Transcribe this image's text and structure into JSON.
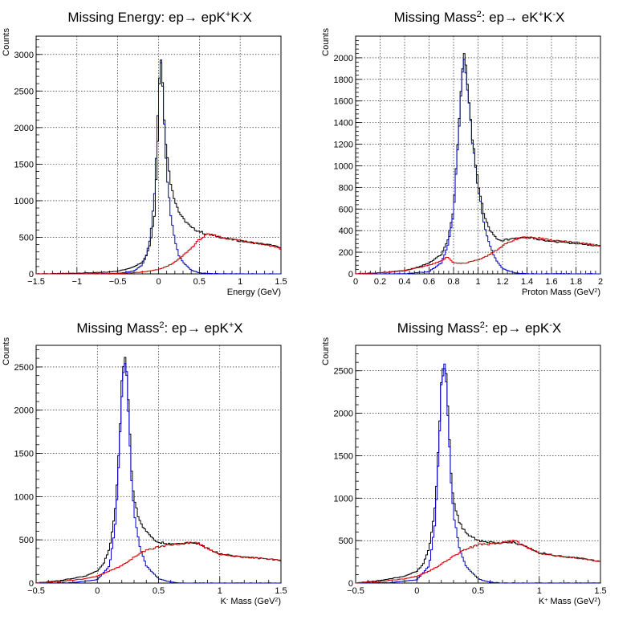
{
  "chart_data": [
    {
      "type": "histogram",
      "title_main": "Missing Energy: ep→ epK",
      "title_sup1": "+",
      "title_mid": "K",
      "title_sup2": "-",
      "title_end": "X",
      "xlabel": "Energy (GeV)",
      "ylabel": "Counts",
      "xlim": [
        -1.5,
        1.5
      ],
      "ylim": [
        0,
        3250
      ],
      "xticks": [
        -1.5,
        -1,
        -0.5,
        0,
        0.5,
        1,
        1.5
      ],
      "xtick_labels": [
        "−1.5",
        "−1",
        "−0.5",
        "0",
        "0.5",
        "1",
        "1.5"
      ],
      "yticks": [
        0,
        500,
        1000,
        1500,
        2000,
        2500,
        3000
      ],
      "ytick_labels": [
        "0",
        "500",
        "1000",
        "1500",
        "2000",
        "2500",
        "3000"
      ],
      "grid": true,
      "series": [
        {
          "color": "#000000",
          "x": [
            -1.5,
            -1.2,
            -1.0,
            -0.8,
            -0.6,
            -0.5,
            -0.4,
            -0.3,
            -0.2,
            -0.15,
            -0.1,
            -0.05,
            0.0,
            0.02,
            0.04,
            0.06,
            0.1,
            0.15,
            0.2,
            0.25,
            0.3,
            0.35,
            0.4,
            0.5,
            0.6,
            0.7,
            0.8,
            1.0,
            1.2,
            1.4,
            1.5
          ],
          "y": [
            0,
            5,
            10,
            15,
            25,
            40,
            60,
            100,
            160,
            250,
            420,
            800,
            2100,
            3070,
            2880,
            2300,
            1650,
            1250,
            1000,
            850,
            750,
            700,
            630,
            580,
            540,
            520,
            490,
            450,
            420,
            390,
            350
          ]
        },
        {
          "color": "#0000cc",
          "x": [
            -1.5,
            -1.0,
            -0.5,
            -0.3,
            -0.2,
            -0.15,
            -0.1,
            -0.05,
            0.0,
            0.02,
            0.04,
            0.06,
            0.1,
            0.15,
            0.2,
            0.25,
            0.3,
            0.4,
            0.5,
            0.6,
            0.8,
            1.0
          ],
          "y": [
            0,
            0,
            5,
            40,
            120,
            250,
            500,
            1100,
            2400,
            3000,
            2850,
            2200,
            1400,
            800,
            450,
            250,
            160,
            50,
            15,
            5,
            0,
            0
          ]
        },
        {
          "color": "#cc0000",
          "x": [
            -1.5,
            -1.0,
            -0.5,
            -0.3,
            -0.2,
            -0.1,
            0.0,
            0.1,
            0.2,
            0.3,
            0.4,
            0.5,
            0.6,
            0.7,
            0.8,
            1.0,
            1.2,
            1.4,
            1.5
          ],
          "y": [
            0,
            0,
            5,
            15,
            25,
            40,
            60,
            100,
            160,
            250,
            350,
            470,
            540,
            520,
            490,
            460,
            420,
            380,
            340
          ]
        }
      ]
    },
    {
      "type": "histogram",
      "title_main": "Missing Mass",
      "title_sup1": "2",
      "title_mid": ": ep→ eK",
      "title_sup2": "+",
      "title_end": "K",
      "title_sup3": "-",
      "title_tail": "X",
      "xlabel": "Proton Mass (GeV",
      "xlabel_sup": "2",
      "xlabel_end": ")",
      "ylabel": "Counts",
      "xlim": [
        0,
        2
      ],
      "ylim": [
        0,
        2200
      ],
      "xticks": [
        0,
        0.2,
        0.4,
        0.6,
        0.8,
        1,
        1.2,
        1.4,
        1.6,
        1.8,
        2
      ],
      "xtick_labels": [
        "0",
        "0.2",
        "0.4",
        "0.6",
        "0.8",
        "1",
        "1.2",
        "1.4",
        "1.6",
        "1.8",
        "2"
      ],
      "yticks": [
        0,
        200,
        400,
        600,
        800,
        1000,
        1200,
        1400,
        1600,
        1800,
        2000
      ],
      "ytick_labels": [
        "0",
        "200",
        "400",
        "600",
        "800",
        "1000",
        "1200",
        "1400",
        "1600",
        "1800",
        "2000"
      ],
      "grid": true,
      "series": [
        {
          "color": "#000000",
          "x": [
            0,
            0.2,
            0.4,
            0.5,
            0.6,
            0.7,
            0.75,
            0.8,
            0.85,
            0.88,
            0.9,
            0.92,
            0.95,
            1.0,
            1.05,
            1.1,
            1.15,
            1.2,
            1.3,
            1.4,
            1.5,
            1.6,
            1.8,
            2.0
          ],
          "y": [
            0,
            10,
            30,
            60,
            100,
            180,
            300,
            600,
            1500,
            2050,
            1950,
            1700,
            1300,
            850,
            550,
            400,
            330,
            310,
            330,
            340,
            320,
            300,
            280,
            260
          ]
        },
        {
          "color": "#0000cc",
          "x": [
            0,
            0.4,
            0.6,
            0.7,
            0.75,
            0.8,
            0.85,
            0.88,
            0.9,
            0.92,
            0.95,
            1.0,
            1.05,
            1.1,
            1.15,
            1.2,
            1.3,
            1.4
          ],
          "y": [
            0,
            0,
            20,
            100,
            250,
            550,
            1450,
            2000,
            1900,
            1650,
            1250,
            800,
            450,
            250,
            120,
            50,
            10,
            0
          ]
        },
        {
          "color": "#cc0000",
          "x": [
            0,
            0.2,
            0.4,
            0.6,
            0.7,
            0.75,
            0.8,
            0.9,
            1.0,
            1.1,
            1.2,
            1.3,
            1.4,
            1.5,
            1.6,
            1.8,
            2.0
          ],
          "y": [
            0,
            10,
            30,
            80,
            120,
            160,
            100,
            100,
            130,
            180,
            260,
            320,
            340,
            330,
            310,
            290,
            260
          ]
        }
      ]
    },
    {
      "type": "histogram",
      "title_main": "Missing Mass",
      "title_sup1": "2",
      "title_mid": ": ep→ epK",
      "title_sup2": "+",
      "title_end": "X",
      "xlabel": "K",
      "xlabel_sup": "-",
      "xlabel_end": " Mass (GeV",
      "xlabel_sup2": "2",
      "xlabel_end2": ")",
      "ylabel": "Counts",
      "xlim": [
        -0.5,
        1.5
      ],
      "ylim": [
        0,
        2750
      ],
      "xticks": [
        -0.5,
        0,
        0.5,
        1,
        1.5
      ],
      "xtick_labels": [
        "−0.5",
        "0",
        "0.5",
        "1",
        "1.5"
      ],
      "yticks": [
        0,
        500,
        1000,
        1500,
        2000,
        2500
      ],
      "ytick_labels": [
        "0",
        "500",
        "1000",
        "1500",
        "2000",
        "2500"
      ],
      "grid": true,
      "series": [
        {
          "color": "#000000",
          "x": [
            -0.5,
            -0.3,
            -0.1,
            0.0,
            0.05,
            0.1,
            0.15,
            0.18,
            0.2,
            0.22,
            0.24,
            0.26,
            0.28,
            0.3,
            0.35,
            0.4,
            0.45,
            0.5,
            0.6,
            0.7,
            0.8,
            0.9,
            1.0,
            1.2,
            1.4,
            1.5
          ],
          "y": [
            0,
            30,
            80,
            140,
            220,
            400,
            900,
            1600,
            2300,
            2600,
            2450,
            1900,
            1300,
            950,
            700,
            600,
            520,
            470,
            450,
            460,
            470,
            400,
            340,
            300,
            280,
            260
          ]
        },
        {
          "color": "#0000cc",
          "x": [
            -0.5,
            -0.2,
            0.0,
            0.1,
            0.15,
            0.18,
            0.2,
            0.22,
            0.24,
            0.26,
            0.28,
            0.3,
            0.35,
            0.4,
            0.5,
            0.6,
            0.7
          ],
          "y": [
            0,
            5,
            40,
            200,
            700,
            1500,
            2200,
            2550,
            2400,
            1800,
            1200,
            800,
            400,
            200,
            50,
            10,
            0
          ]
        },
        {
          "color": "#cc0000",
          "x": [
            -0.5,
            -0.3,
            -0.1,
            0.0,
            0.1,
            0.2,
            0.3,
            0.4,
            0.5,
            0.6,
            0.7,
            0.8,
            0.9,
            1.0,
            1.2,
            1.4,
            1.5
          ],
          "y": [
            0,
            20,
            50,
            80,
            140,
            200,
            300,
            380,
            420,
            440,
            460,
            480,
            400,
            330,
            300,
            280,
            260
          ]
        }
      ]
    },
    {
      "type": "histogram",
      "title_main": "Missing Mass",
      "title_sup1": "2",
      "title_mid": ": ep→ epK",
      "title_sup2": "-",
      "title_end": "X",
      "xlabel": "K",
      "xlabel_sup": "+",
      "xlabel_end": " Mass (GeV",
      "xlabel_sup2": "2",
      "xlabel_end2": ")",
      "ylabel": "Counts",
      "xlim": [
        -0.5,
        1.5
      ],
      "ylim": [
        0,
        2800
      ],
      "xticks": [
        -0.5,
        0,
        0.5,
        1,
        1.5
      ],
      "xtick_labels": [
        "−0.5",
        "0",
        "0.5",
        "1",
        "1.5"
      ],
      "yticks": [
        0,
        500,
        1000,
        1500,
        2000,
        2500
      ],
      "ytick_labels": [
        "0",
        "500",
        "1000",
        "1500",
        "2000",
        "2500"
      ],
      "grid": true,
      "series": [
        {
          "color": "#000000",
          "x": [
            -0.5,
            -0.3,
            -0.1,
            0.0,
            0.05,
            0.1,
            0.15,
            0.18,
            0.2,
            0.22,
            0.24,
            0.26,
            0.28,
            0.3,
            0.35,
            0.4,
            0.45,
            0.5,
            0.6,
            0.7,
            0.8,
            0.9,
            1.0,
            1.2,
            1.4,
            1.5
          ],
          "y": [
            0,
            30,
            80,
            140,
            220,
            400,
            900,
            1700,
            2400,
            2650,
            2450,
            1900,
            1300,
            950,
            700,
            600,
            540,
            500,
            480,
            470,
            480,
            420,
            360,
            310,
            280,
            250
          ]
        },
        {
          "color": "#0000cc",
          "x": [
            -0.5,
            -0.2,
            0.0,
            0.1,
            0.15,
            0.18,
            0.2,
            0.22,
            0.24,
            0.26,
            0.28,
            0.3,
            0.35,
            0.4,
            0.5,
            0.6,
            0.7
          ],
          "y": [
            0,
            5,
            40,
            200,
            700,
            1550,
            2300,
            2600,
            2400,
            1800,
            1200,
            800,
            400,
            200,
            50,
            10,
            0
          ]
        },
        {
          "color": "#cc0000",
          "x": [
            -0.5,
            -0.3,
            -0.1,
            0.0,
            0.1,
            0.2,
            0.3,
            0.4,
            0.5,
            0.6,
            0.7,
            0.8,
            0.9,
            1.0,
            1.2,
            1.4,
            1.5
          ],
          "y": [
            0,
            20,
            50,
            80,
            140,
            220,
            320,
            400,
            450,
            460,
            480,
            500,
            420,
            350,
            310,
            280,
            250
          ]
        }
      ]
    }
  ]
}
